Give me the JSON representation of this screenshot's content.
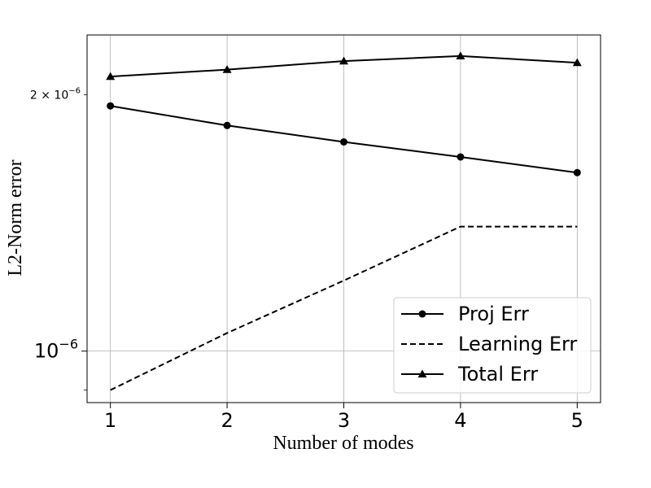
{
  "chart_data": {
    "type": "line",
    "title": "",
    "xlabel": "Number of modes",
    "ylabel": "L2-Norm error",
    "x": [
      1,
      2,
      3,
      4,
      5
    ],
    "xticks": [
      "1",
      "2",
      "3",
      "4",
      "5"
    ],
    "xlim": [
      0.8,
      5.2
    ],
    "yscale": "log",
    "ylim": [
      8.7e-07,
      2.35e-06
    ],
    "yticks_major": [
      {
        "value": 1e-06,
        "label": "10",
        "exp": "−6"
      }
    ],
    "yticks_minor": [
      {
        "value": 2e-06,
        "label": "2 × 10",
        "exp": "−6"
      }
    ],
    "grid": true,
    "legend_position": "lower-right",
    "series": [
      {
        "name": "Proj Err",
        "values": [
          1.94e-06,
          1.84e-06,
          1.76e-06,
          1.69e-06,
          1.62e-06
        ],
        "line": "solid",
        "marker": "circle",
        "color": "#000000"
      },
      {
        "name": "Learning Err",
        "values": [
          9e-07,
          1.05e-06,
          1.21e-06,
          1.4e-06,
          1.4e-06
        ],
        "line": "dashed",
        "marker": "none",
        "color": "#000000"
      },
      {
        "name": "Total Err",
        "values": [
          2.1e-06,
          2.14e-06,
          2.19e-06,
          2.22e-06,
          2.18e-06
        ],
        "line": "solid",
        "marker": "triangle",
        "color": "#000000"
      }
    ]
  }
}
